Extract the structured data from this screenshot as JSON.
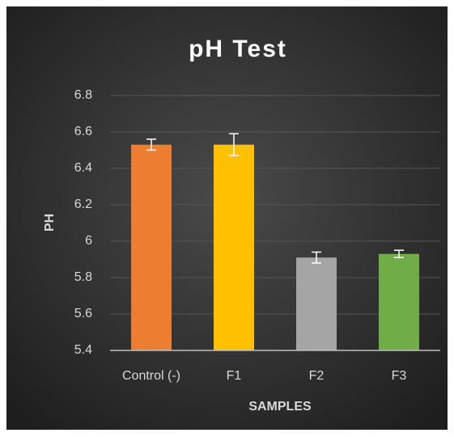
{
  "chart_data": {
    "type": "bar",
    "title": "pH Test",
    "x_label": "SAMPLES",
    "y_label": "PH",
    "categories": [
      "Control (-)",
      "F1",
      "F2",
      "F3"
    ],
    "values": [
      6.53,
      6.53,
      5.91,
      5.93
    ],
    "errors": [
      0.03,
      0.06,
      0.03,
      0.02
    ],
    "colors": [
      "#ed7d31",
      "#ffc000",
      "#a5a5a5",
      "#70ad47"
    ],
    "ylim": [
      5.4,
      6.8
    ],
    "yticks": [
      5.4,
      5.6,
      5.8,
      6,
      6.2,
      6.4,
      6.6,
      6.8
    ],
    "grid": true
  }
}
